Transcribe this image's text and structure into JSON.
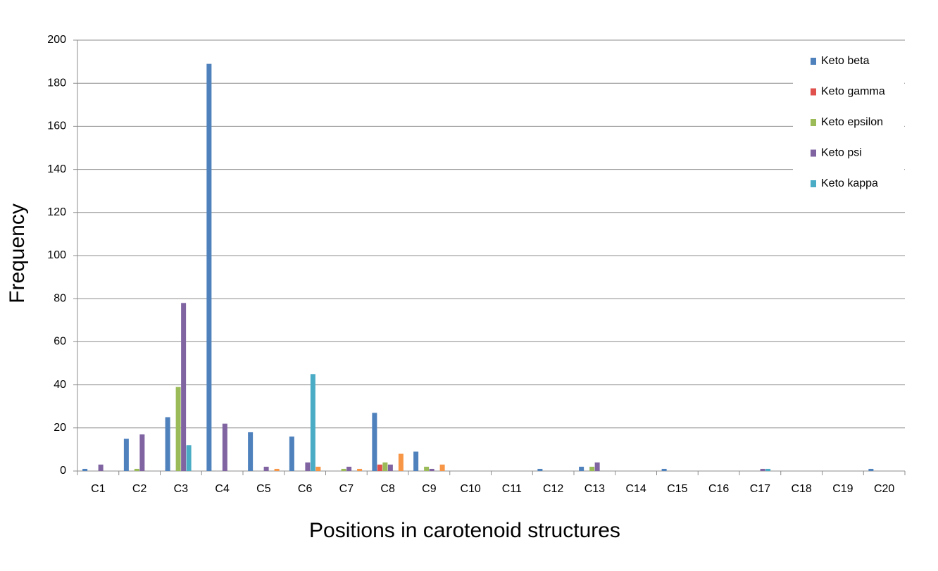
{
  "chart_data": {
    "type": "bar",
    "x_label": "Positions in carotenoid structures",
    "y_label": "Frequency",
    "categories": [
      "C1",
      "C2",
      "C3",
      "C4",
      "C5",
      "C6",
      "C7",
      "C8",
      "C9",
      "C10",
      "C11",
      "C12",
      "C13",
      "C14",
      "C15",
      "C16",
      "C17",
      "C18",
      "C19",
      "C20"
    ],
    "series": [
      {
        "name": "Keto beta",
        "color": "#4f81bd",
        "values": [
          1,
          15,
          25,
          189,
          18,
          16,
          0,
          27,
          9,
          0,
          0,
          1,
          2,
          0,
          1,
          0,
          0,
          0,
          0,
          1
        ]
      },
      {
        "name": "Keto gamma",
        "color": "#e0504d",
        "values": [
          0,
          0,
          0,
          0,
          0,
          0,
          0,
          3,
          0,
          0,
          0,
          0,
          0,
          0,
          0,
          0,
          0,
          0,
          0,
          0
        ]
      },
      {
        "name": "Keto epsilon",
        "color": "#9bbb59",
        "values": [
          0,
          1,
          39,
          0,
          0,
          0,
          1,
          4,
          2,
          0,
          0,
          0,
          2,
          0,
          0,
          0,
          0,
          0,
          0,
          0
        ]
      },
      {
        "name": "Keto psi",
        "color": "#8064a2",
        "values": [
          3,
          17,
          78,
          22,
          2,
          4,
          2,
          3,
          1,
          0,
          0,
          0,
          4,
          0,
          0,
          0,
          1,
          0,
          0,
          0
        ]
      },
      {
        "name": "Keto kappa",
        "color": "#4bacc6",
        "values": [
          0,
          0,
          12,
          0,
          0,
          45,
          0,
          0,
          0,
          0,
          0,
          0,
          0,
          0,
          0,
          0,
          1,
          0,
          0,
          0
        ]
      },
      {
        "color": "#f79646",
        "values": [
          0,
          0,
          0,
          0,
          1,
          2,
          1,
          8,
          3,
          0,
          0,
          0,
          0,
          0,
          0,
          0,
          0,
          0,
          0,
          0
        ]
      }
    ],
    "ylim": [
      0,
      200
    ],
    "yticks": [
      0,
      20,
      40,
      60,
      80,
      100,
      120,
      140,
      160,
      180,
      200
    ],
    "grid": true,
    "legend": "right"
  }
}
